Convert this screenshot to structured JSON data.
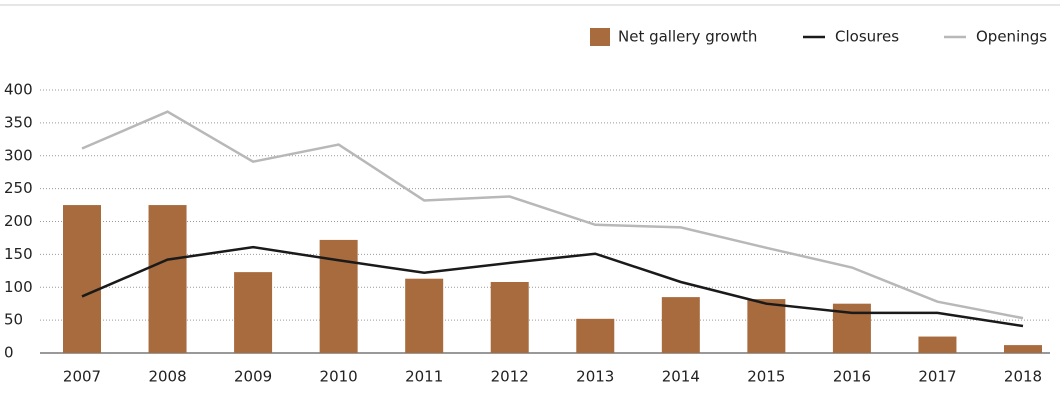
{
  "chart_data": {
    "type": "bar-line",
    "categories": [
      "2007",
      "2008",
      "2009",
      "2010",
      "2011",
      "2012",
      "2013",
      "2014",
      "2015",
      "2016",
      "2017",
      "2018"
    ],
    "series": [
      {
        "name": "Net gallery growth",
        "type": "bar",
        "color": "#a86b3d",
        "values": [
          225,
          225,
          123,
          172,
          113,
          108,
          52,
          85,
          82,
          75,
          25,
          12
        ]
      },
      {
        "name": "Closures",
        "type": "line",
        "color": "#1a1a1a",
        "values": [
          86,
          142,
          161,
          141,
          122,
          137,
          151,
          108,
          75,
          61,
          61,
          41
        ]
      },
      {
        "name": "Openings",
        "type": "line",
        "color": "#b8b8b8",
        "values": [
          311,
          367,
          291,
          317,
          232,
          238,
          195,
          191,
          160,
          130,
          78,
          53
        ]
      }
    ],
    "ylim": [
      0,
      400
    ],
    "yticks": [
      0,
      50,
      100,
      150,
      200,
      250,
      300,
      350,
      400
    ],
    "grid": true,
    "legend": "top-right"
  }
}
